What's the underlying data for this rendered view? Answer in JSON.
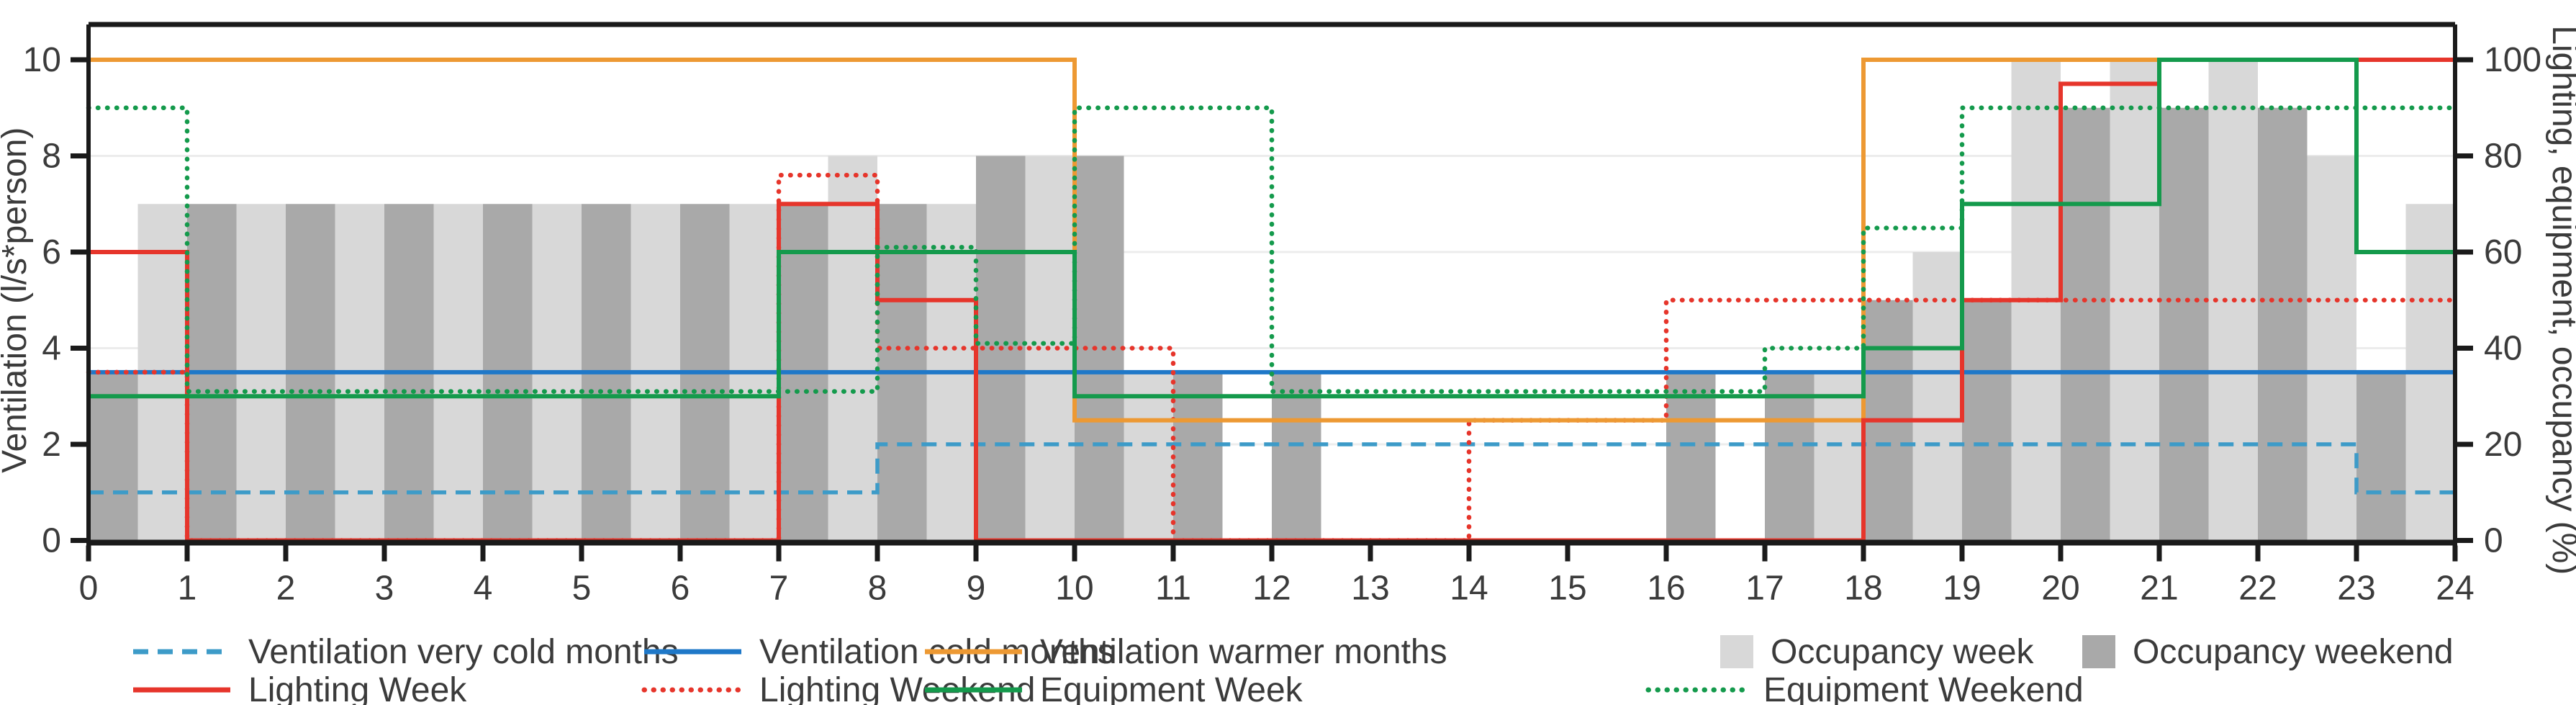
{
  "axes": {
    "left_label": "Ventilation (l/s*person)",
    "right_label": "Lighting, equipment, occupancy (%)",
    "left_ticks": [
      0,
      2,
      4,
      6,
      8,
      10
    ],
    "right_ticks": [
      0,
      20,
      40,
      60,
      80,
      100
    ],
    "x_ticks": [
      0,
      1,
      2,
      3,
      4,
      5,
      6,
      7,
      8,
      9,
      10,
      11,
      12,
      13,
      14,
      15,
      16,
      17,
      18,
      19,
      20,
      21,
      22,
      23,
      24
    ],
    "x_range": [
      0,
      24
    ],
    "left_range": [
      0,
      10.8
    ],
    "right_range": [
      0,
      108
    ],
    "grid_values": [
      2,
      4,
      6,
      8
    ]
  },
  "legend": {
    "row1": [
      {
        "id": "vent-very-cold",
        "label": "Ventilation very cold months",
        "swatch": "dashed-line",
        "color": "#3D9BC8"
      },
      {
        "id": "vent-cold",
        "label": "Ventilation cold months",
        "swatch": "solid-line",
        "color": "#1F78C8"
      },
      {
        "id": "vent-warm",
        "label": "Ventilation warmer months",
        "swatch": "solid-line",
        "color": "#ED9933"
      },
      {
        "id": "occ-week",
        "label": "Occupancy week",
        "swatch": "square",
        "color": "#D8D8D8"
      },
      {
        "id": "occ-weekend",
        "label": "Occupancy weekend",
        "swatch": "square",
        "color": "#A9A9A9"
      }
    ],
    "row2": [
      {
        "id": "light-week",
        "label": "Lighting Week",
        "swatch": "solid-line",
        "color": "#E6352B"
      },
      {
        "id": "light-weekend",
        "label": "Lighting Weekend",
        "swatch": "dotted-line",
        "color": "#E6352B"
      },
      {
        "id": "equip-week",
        "label": "Equipment Week",
        "swatch": "solid-line",
        "color": "#149A4C"
      },
      {
        "id": "equip-weekend",
        "label": "Equipment Weekend",
        "swatch": "dotted-line",
        "color": "#149A4C"
      }
    ]
  },
  "chart_data": {
    "type": "combo (step lines + grouped bars)",
    "x_unit": "hour of day",
    "left_axis_unit": "l/s*person",
    "right_axis_unit": "%",
    "bars": {
      "occupancy_week_pct": {
        "1": 70,
        "2": 70,
        "3": 70,
        "4": 70,
        "5": 70,
        "6": 70,
        "7": 70,
        "8": 80,
        "9": 70,
        "10": 80,
        "11": 35,
        "12": 0,
        "13": 0,
        "14": 0,
        "15": 0,
        "16": 0,
        "17": 0,
        "18": 35,
        "19": 60,
        "20": 100,
        "21": 100,
        "22": 100,
        "23": 80,
        "24": 70
      },
      "occupancy_weekend_pct": {
        "0": 35,
        "1": 70,
        "2": 70,
        "3": 70,
        "4": 70,
        "5": 70,
        "6": 70,
        "7": 70,
        "8": 70,
        "9": 80,
        "10": 80,
        "11": 35,
        "12": 35,
        "13": 0,
        "14": 0,
        "15": 0,
        "16": 35,
        "17": 35,
        "18": 50,
        "19": 50,
        "20": 90,
        "21": 90,
        "22": 90,
        "23": 35
      }
    },
    "series": [
      {
        "id": "vent-very-cold",
        "name": "Ventilation very cold months",
        "style": "dashed",
        "color": "#3D9BC8",
        "segments": [
          {
            "from": 0,
            "to": 8,
            "value": 1.0
          },
          {
            "from": 8,
            "to": 23,
            "value": 2.0
          },
          {
            "from": 23,
            "to": 24,
            "value": 1.0
          }
        ]
      },
      {
        "id": "vent-cold",
        "name": "Ventilation cold months",
        "style": "solid",
        "color": "#1F78C8",
        "segments": [
          {
            "from": 0,
            "to": 24,
            "value": 3.5
          }
        ]
      },
      {
        "id": "light-weekend",
        "name": "Lighting Weekend",
        "style": "dotted",
        "color": "#E6352B",
        "segments": [
          {
            "from": 0,
            "to": 1,
            "value": 3.5
          },
          {
            "from": 1,
            "to": 7,
            "value": 0
          },
          {
            "from": 7,
            "to": 8,
            "value": 7.6
          },
          {
            "from": 8,
            "to": 11,
            "value": 4.0
          },
          {
            "from": 11,
            "to": 14,
            "value": 0
          },
          {
            "from": 14,
            "to": 16,
            "value": 2.5
          },
          {
            "from": 16,
            "to": 24,
            "value": 5.0
          }
        ]
      },
      {
        "id": "vent-warm",
        "name": "Ventilation warmer months",
        "style": "solid",
        "color": "#ED9933",
        "segments": [
          {
            "from": 0,
            "to": 10,
            "value": 10
          },
          {
            "from": 10,
            "to": 18,
            "value": 2.5
          },
          {
            "from": 18,
            "to": 24,
            "value": 10
          }
        ]
      },
      {
        "id": "light-week",
        "name": "Lighting Week",
        "style": "solid",
        "color": "#E6352B",
        "segments": [
          {
            "from": 0,
            "to": 1,
            "value": 6
          },
          {
            "from": 1,
            "to": 7,
            "value": 0
          },
          {
            "from": 7,
            "to": 8,
            "value": 7
          },
          {
            "from": 8,
            "to": 9,
            "value": 5
          },
          {
            "from": 9,
            "to": 18,
            "value": 0
          },
          {
            "from": 18,
            "to": 19,
            "value": 2.5
          },
          {
            "from": 19,
            "to": 20,
            "value": 5
          },
          {
            "from": 20,
            "to": 21,
            "value": 9.5
          },
          {
            "from": 21,
            "to": 24,
            "value": 10
          }
        ]
      },
      {
        "id": "equip-week",
        "name": "Equipment Week",
        "style": "solid",
        "color": "#149A4C",
        "segments": [
          {
            "from": 0,
            "to": 7,
            "value": 3.0
          },
          {
            "from": 7,
            "to": 10,
            "value": 6.0
          },
          {
            "from": 10,
            "to": 18,
            "value": 3.0
          },
          {
            "from": 18,
            "to": 19,
            "value": 4.0
          },
          {
            "from": 19,
            "to": 21,
            "value": 7.0
          },
          {
            "from": 21,
            "to": 23,
            "value": 10
          },
          {
            "from": 23,
            "to": 24,
            "value": 6.0
          }
        ]
      },
      {
        "id": "equip-weekend",
        "name": "Equipment Weekend",
        "style": "dotted",
        "color": "#149A4C",
        "segments": [
          {
            "from": 0,
            "to": 1,
            "value": 9.0
          },
          {
            "from": 1,
            "to": 8,
            "value": 3.1
          },
          {
            "from": 8,
            "to": 9,
            "value": 6.1
          },
          {
            "from": 9,
            "to": 10,
            "value": 4.1
          },
          {
            "from": 10,
            "to": 12,
            "value": 9.0
          },
          {
            "from": 12,
            "to": 17,
            "value": 3.1
          },
          {
            "from": 17,
            "to": 18,
            "value": 4.0
          },
          {
            "from": 18,
            "to": 19,
            "value": 6.5
          },
          {
            "from": 19,
            "to": 24,
            "value": 9.0
          }
        ]
      }
    ],
    "draw_order": [
      "bars",
      "vent-very-cold",
      "vent-cold",
      "light-weekend",
      "vent-warm",
      "light-week",
      "equip-week",
      "equip-weekend"
    ],
    "layout_hints": {
      "bars_are_pairs": "week bar occupies [h-0.5,h], weekend bar occupies [h,h+0.5]",
      "grid": "horizontal light lines at 2,4,6,8",
      "legend_position": "below chart, two rows"
    }
  }
}
